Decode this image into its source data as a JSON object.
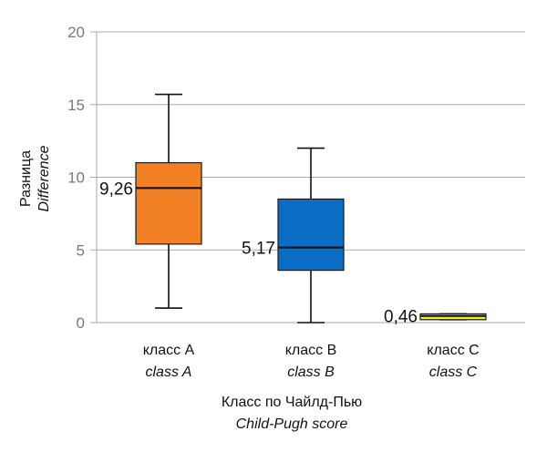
{
  "chart_data": {
    "type": "box",
    "ylim": [
      0,
      20
    ],
    "y_ticks": [
      0,
      5,
      10,
      15,
      20
    ],
    "grid": true,
    "xlabel": "Класс по Чайлд-Пью",
    "xlabel_en": "Child-Pugh score",
    "ylabel": "Разница",
    "ylabel_en": "Difference",
    "categories": [
      {
        "label": "класс A",
        "label_en": "class A",
        "min": 1.0,
        "q1": 5.4,
        "median": 9.26,
        "q3": 11.0,
        "max": 15.7,
        "median_label": "9,26",
        "color": "#f28024"
      },
      {
        "label": "класс B",
        "label_en": "class B",
        "min": 0.0,
        "q1": 3.6,
        "median": 5.17,
        "q3": 8.5,
        "max": 12.0,
        "median_label": "5,17",
        "color": "#0a6ec6"
      },
      {
        "label": "класс C",
        "label_en": "class C",
        "min": 0.2,
        "q1": 0.2,
        "median": 0.46,
        "q3": 0.6,
        "max": 0.6,
        "median_label": "0,46",
        "color": "#f2ea3a"
      }
    ]
  }
}
